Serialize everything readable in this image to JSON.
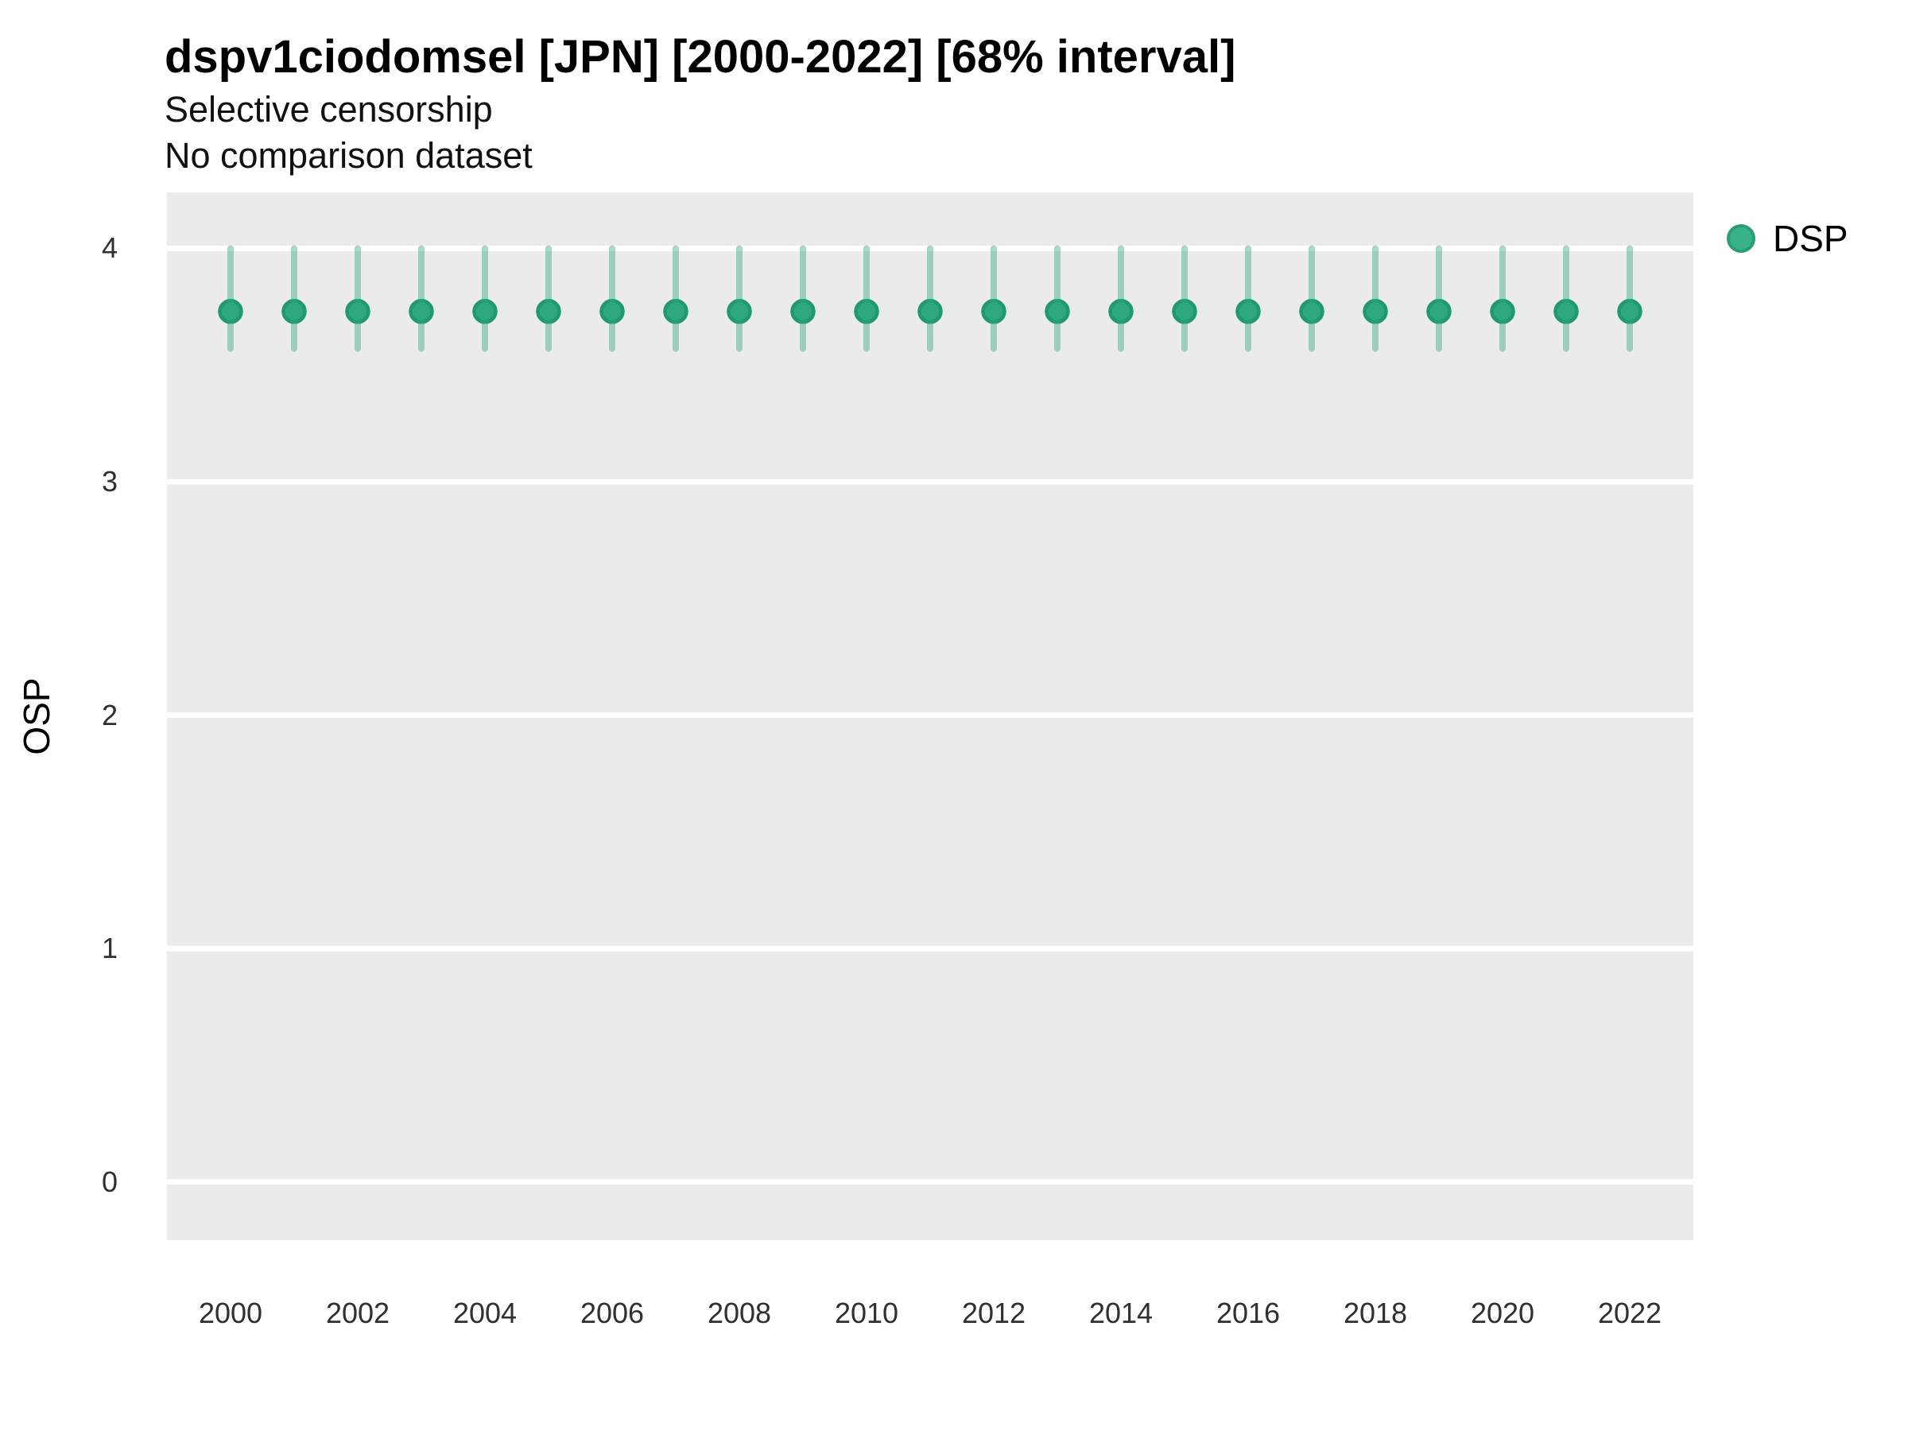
{
  "title": "dspv1ciodomsel [JPN] [2000-2022] [68% interval]",
  "subtitle_line1": "Selective censorship",
  "subtitle_line2": "No comparison dataset",
  "y_axis_label": "OSP",
  "legend": {
    "label": "DSP"
  },
  "colors": {
    "panel_background": "#EBEBEB",
    "gridline": "#FFFFFF",
    "point_fill": "#2DA87C",
    "point_stroke": "#1E9A6D",
    "interval_bar": "rgba(47,166,124,0.42)",
    "legend_dot_fill": "#37B285",
    "legend_dot_stroke": "#2A9E72",
    "tick_text": "#303030",
    "title_text": "#000000"
  },
  "chart_data": {
    "type": "scatter",
    "title": "dspv1ciodomsel [JPN] [2000-2022] [68% interval]",
    "subtitle": [
      "Selective censorship",
      "No comparison dataset"
    ],
    "xlabel": "",
    "ylabel": "OSP",
    "legend_position": "right-top",
    "grid": "horizontal-major-only",
    "xlim": [
      1999,
      2023
    ],
    "ylim": [
      -0.25,
      4.24
    ],
    "y_ticks": [
      0,
      1,
      2,
      3,
      4
    ],
    "x_tick_labels": [
      2000,
      2002,
      2004,
      2006,
      2008,
      2010,
      2012,
      2014,
      2016,
      2018,
      2020,
      2022
    ],
    "series": [
      {
        "name": "DSP",
        "x": [
          2000,
          2001,
          2002,
          2003,
          2004,
          2005,
          2006,
          2007,
          2008,
          2009,
          2010,
          2011,
          2012,
          2013,
          2014,
          2015,
          2016,
          2017,
          2018,
          2019,
          2020,
          2021,
          2022
        ],
        "y": [
          3.73,
          3.73,
          3.73,
          3.73,
          3.73,
          3.73,
          3.73,
          3.73,
          3.73,
          3.73,
          3.73,
          3.73,
          3.73,
          3.73,
          3.73,
          3.73,
          3.73,
          3.73,
          3.73,
          3.73,
          3.73,
          3.73,
          3.73
        ],
        "lower": [
          3.57,
          3.57,
          3.57,
          3.57,
          3.57,
          3.57,
          3.57,
          3.57,
          3.57,
          3.57,
          3.57,
          3.57,
          3.57,
          3.57,
          3.57,
          3.57,
          3.57,
          3.57,
          3.57,
          3.57,
          3.57,
          3.57,
          3.57
        ],
        "upper": [
          4.0,
          4.0,
          4.0,
          4.0,
          4.0,
          4.0,
          4.0,
          4.0,
          4.0,
          4.0,
          4.0,
          4.0,
          4.0,
          4.0,
          4.0,
          4.0,
          4.0,
          4.0,
          4.0,
          4.0,
          4.0,
          4.0,
          4.0
        ],
        "interval_label": "68% interval"
      }
    ]
  }
}
